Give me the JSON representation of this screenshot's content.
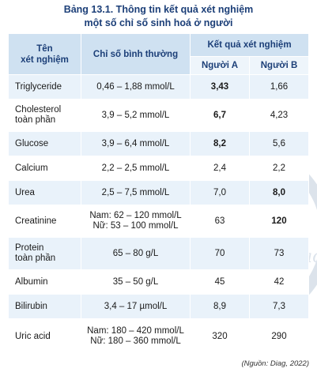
{
  "title": {
    "line1": "Bảng 13.1. Thông tin kết quả xét nghiệm",
    "line2": "một số chỉ số sinh hoá ở người"
  },
  "header": {
    "test_name": [
      "Tên",
      "xét nghiệm"
    ],
    "normal_range": "Chỉ số bình thường",
    "results": "Kết quả xét nghiệm",
    "person_a": "Người A",
    "person_b": "Người B"
  },
  "rows": [
    {
      "name": [
        "Triglyceride"
      ],
      "normal": [
        "0,46 – 1,88 mmol/L"
      ],
      "a": "3,43",
      "b": "1,66",
      "a_bold": true,
      "b_bold": false
    },
    {
      "name": [
        "Cholesterol",
        "toàn phần"
      ],
      "normal": [
        "3,9 – 5,2 mmol/L"
      ],
      "a": "6,7",
      "b": "4,23",
      "a_bold": true,
      "b_bold": false
    },
    {
      "name": [
        "Glucose"
      ],
      "normal": [
        "3,9 – 6,4 mmol/L"
      ],
      "a": "8,2",
      "b": "5,6",
      "a_bold": true,
      "b_bold": false
    },
    {
      "name": [
        "Calcium"
      ],
      "normal": [
        "2,2 – 2,5 mmol/L"
      ],
      "a": "2,4",
      "b": "2,2",
      "a_bold": false,
      "b_bold": false
    },
    {
      "name": [
        "Urea"
      ],
      "normal": [
        "2,5 – 7,5 mmol/L"
      ],
      "a": "7,0",
      "b": "8,0",
      "a_bold": false,
      "b_bold": true
    },
    {
      "name": [
        "Creatinine"
      ],
      "normal": [
        "Nam: 62 – 120 mmol/L",
        "Nữ: 53 – 100 mmol/L"
      ],
      "a": "63",
      "b": "120",
      "a_bold": false,
      "b_bold": true
    },
    {
      "name": [
        "Protein",
        "toàn phần"
      ],
      "normal": [
        "65 – 80 g/L"
      ],
      "a": "70",
      "b": "73",
      "a_bold": false,
      "b_bold": false
    },
    {
      "name": [
        "Albumin"
      ],
      "normal": [
        "35 – 50 g/L"
      ],
      "a": "45",
      "b": "42",
      "a_bold": false,
      "b_bold": false
    },
    {
      "name": [
        "Bilirubin"
      ],
      "normal": [
        "3,4 – 17 µmol/L"
      ],
      "a": "8,9",
      "b": "7,3",
      "a_bold": false,
      "b_bold": false
    },
    {
      "name": [
        "Uric acid"
      ],
      "normal": [
        "Nam: 180 – 420 mmol/L",
        "Nữ: 180 – 360 mmol/L"
      ],
      "a": "320",
      "b": "290",
      "a_bold": false,
      "b_bold": false
    }
  ],
  "watermark_text": "Chân trời sáng tạo",
  "source": "(Nguồn: Diag, 2022)"
}
